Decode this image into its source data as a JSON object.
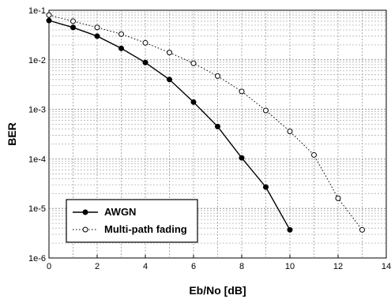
{
  "chart_data": {
    "type": "line",
    "xlabel": "Eb/No [dB]",
    "ylabel": "BER",
    "xlim": [
      0,
      14
    ],
    "ylim": [
      1e-06,
      0.1
    ],
    "yscale": "log",
    "grid": true,
    "legend_position": "bottom-left",
    "x_ticks": [
      "0",
      "2",
      "4",
      "6",
      "8",
      "10",
      "12",
      "14"
    ],
    "y_ticks": [
      "1e-1",
      "1e-2",
      "1e-3",
      "1e-4",
      "1e-5",
      "1e-6"
    ],
    "series": [
      {
        "name": "AWGN",
        "style": "solid",
        "marker": "filled-circle",
        "color": "#000000",
        "x": [
          0,
          1,
          2,
          3,
          4,
          5,
          6,
          7,
          8,
          9,
          10
        ],
        "y": [
          0.062,
          0.045,
          0.03,
          0.017,
          0.0088,
          0.004,
          0.0014,
          0.00045,
          0.000105,
          2.7e-05,
          3.7e-06
        ]
      },
      {
        "name": "Multi-path fading",
        "style": "dotted",
        "marker": "open-circle",
        "color": "#000000",
        "x": [
          0,
          1,
          2,
          3,
          4,
          5,
          6,
          7,
          8,
          9,
          10,
          11,
          12,
          13
        ],
        "y": [
          0.08,
          0.06,
          0.045,
          0.033,
          0.022,
          0.014,
          0.0085,
          0.0047,
          0.0023,
          0.00095,
          0.00036,
          0.00012,
          1.6e-05,
          3.7e-06
        ]
      }
    ]
  }
}
